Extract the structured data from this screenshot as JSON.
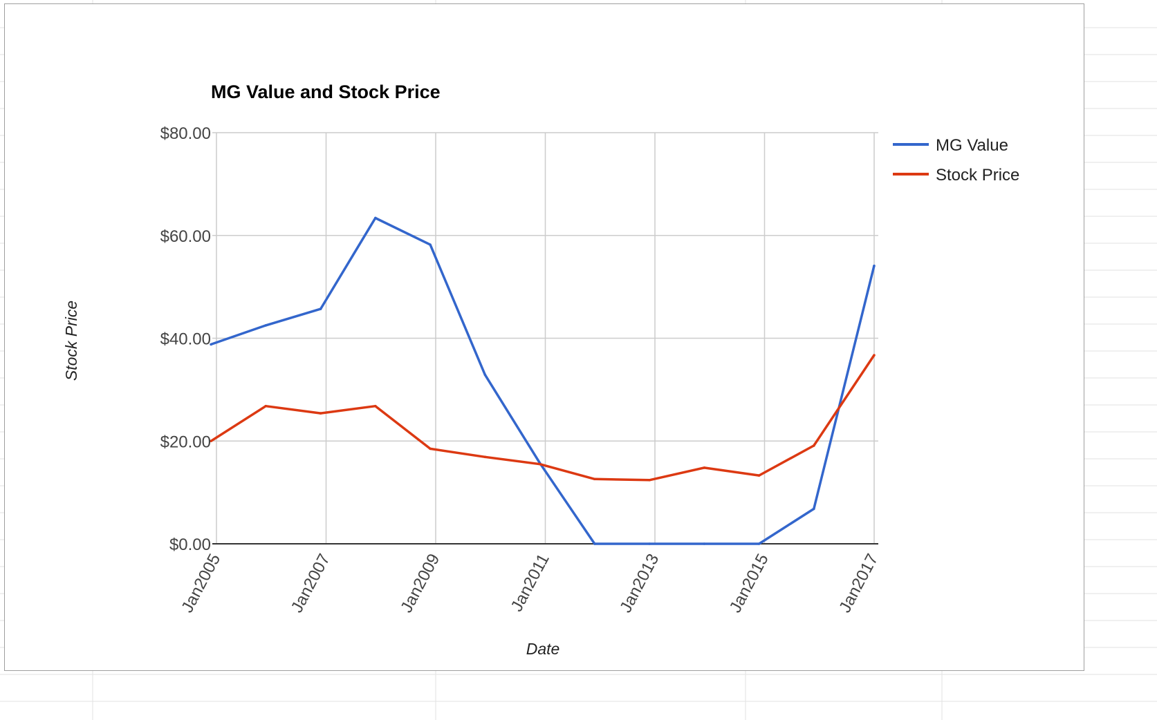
{
  "chart_data": {
    "type": "line",
    "title": "MG Value and Stock Price",
    "xlabel": "Date",
    "ylabel": "Stock Price",
    "ylim": [
      0,
      80
    ],
    "y_ticks": [
      "$0.00",
      "$20.00",
      "$40.00",
      "$60.00",
      "$80.00"
    ],
    "y_tick_values": [
      0,
      20,
      40,
      60,
      80
    ],
    "x_range": [
      2005.0,
      2017.0
    ],
    "x_tick_labels": [
      "Jan2005",
      "Jan2007",
      "Jan2009",
      "Jan2011",
      "Jan2013",
      "Jan2015",
      "Jan2017"
    ],
    "x_tick_values": [
      2005,
      2007,
      2009,
      2011,
      2013,
      2015,
      2017
    ],
    "grid": true,
    "legend_position": "right",
    "x": [
      2004.9,
      2005.9,
      2006.9,
      2007.9,
      2008.9,
      2009.9,
      2010.9,
      2011.9,
      2012.9,
      2013.9,
      2014.9,
      2015.9,
      2017.0
    ],
    "series": [
      {
        "name": "MG Value",
        "color": "#3366cc",
        "values": [
          38.8,
          42.5,
          45.7,
          63.4,
          58.2,
          32.9,
          15.7,
          0.0,
          0.0,
          0.0,
          0.0,
          6.8,
          54.1
        ]
      },
      {
        "name": "Stock Price",
        "color": "#dc3912",
        "values": [
          20.0,
          26.8,
          25.4,
          26.8,
          18.5,
          16.9,
          15.5,
          12.6,
          12.4,
          14.8,
          13.3,
          19.1,
          36.7
        ]
      }
    ]
  }
}
